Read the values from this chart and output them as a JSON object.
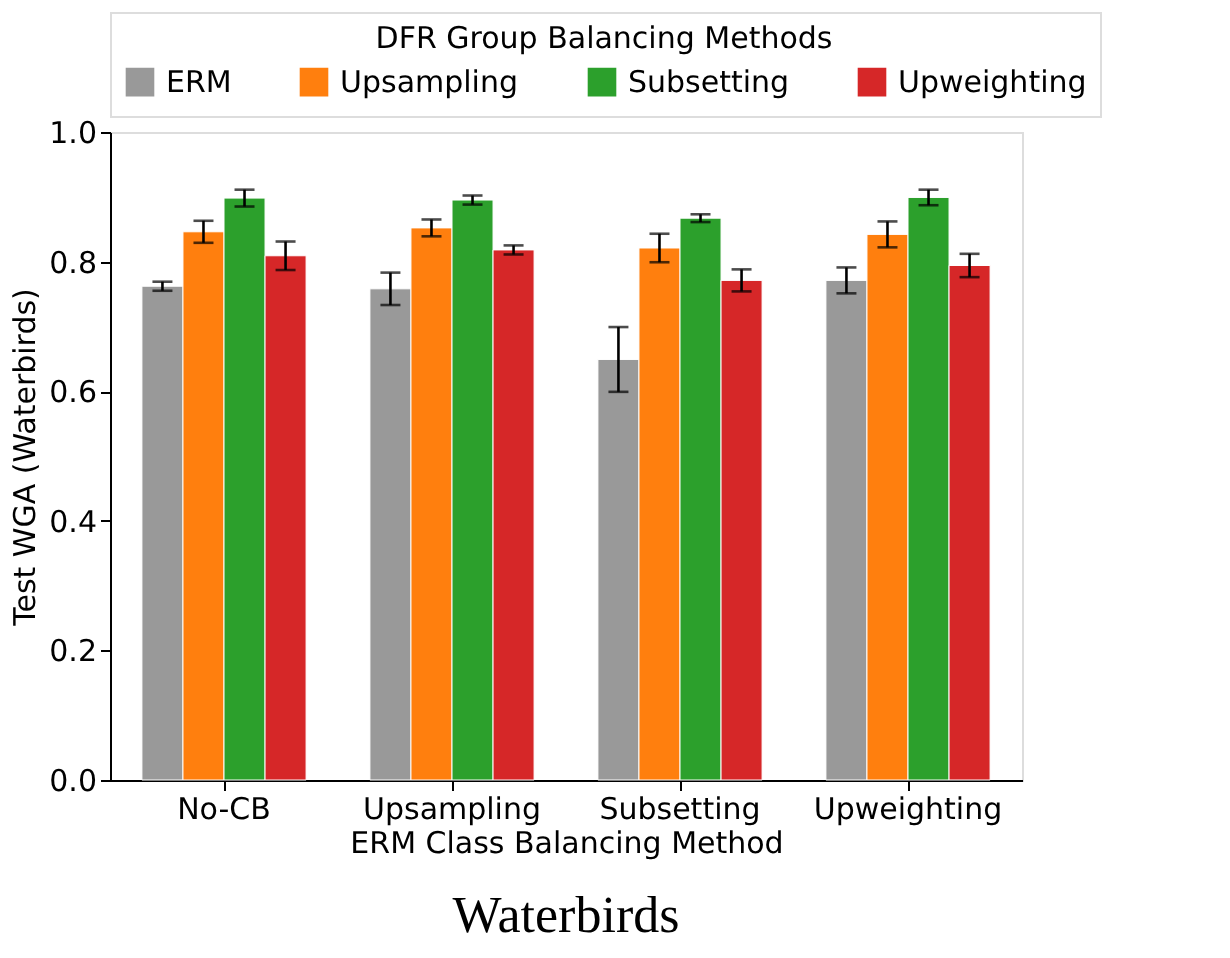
{
  "chart_data": {
    "type": "bar",
    "xlabel": "ERM Class Balancing Method",
    "ylabel": "Test WGA (Waterbirds)",
    "legend_title": "DFR Group Balancing Methods",
    "legend": "top",
    "grid": false,
    "categories": [
      "No-CB",
      "Upsampling",
      "Subsetting",
      "Upweighting"
    ],
    "series": [
      {
        "name": "ERM",
        "color": "#999999",
        "values": [
          0.762,
          0.758,
          0.649,
          0.771
        ],
        "errors": [
          0.007,
          0.025,
          0.05,
          0.02
        ]
      },
      {
        "name": "Upsampling",
        "color": "#ff7f0e",
        "values": [
          0.846,
          0.852,
          0.821,
          0.842
        ],
        "errors": [
          0.017,
          0.013,
          0.022,
          0.02
        ]
      },
      {
        "name": "Subsetting",
        "color": "#2ca02c",
        "values": [
          0.898,
          0.895,
          0.867,
          0.899
        ],
        "errors": [
          0.013,
          0.007,
          0.006,
          0.012
        ]
      },
      {
        "name": "Upweighting",
        "color": "#d62728",
        "values": [
          0.809,
          0.818,
          0.771,
          0.794
        ],
        "errors": [
          0.022,
          0.007,
          0.017,
          0.018
        ]
      }
    ],
    "ylim": [
      0,
      1.0
    ],
    "yticks": [
      {
        "value": 0,
        "label": "0.0"
      },
      0.2,
      0.4,
      0.6,
      0.8,
      {
        "value": 1,
        "label": "1.0"
      }
    ],
    "annotations": [
      "Waterbirds"
    ]
  }
}
